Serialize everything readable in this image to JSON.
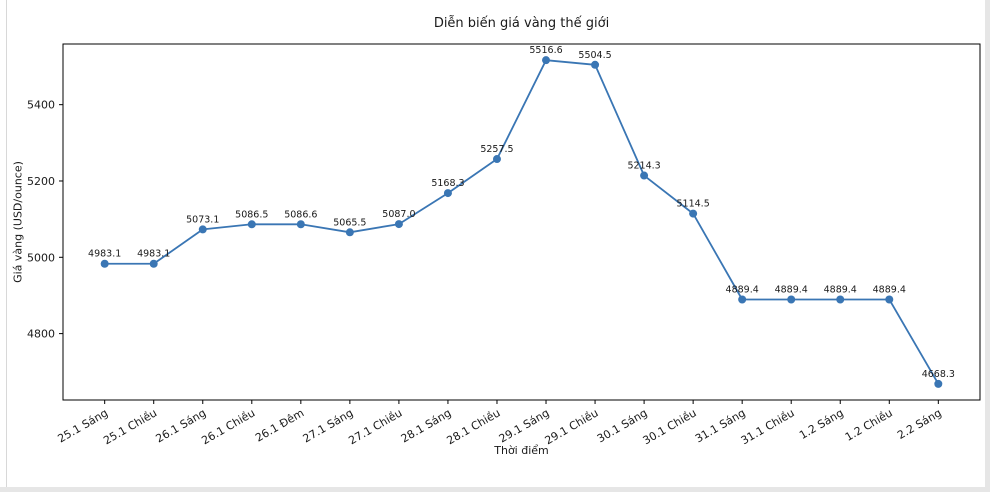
{
  "page": {
    "background": "#ffffff",
    "edge_strip_color": "#e6e6e6"
  },
  "chart_data": {
    "type": "line",
    "title": "Diễn biến giá vàng thế giới",
    "xlabel": "Thời điểm",
    "ylabel": "Giá vàng (USD/ounce)",
    "categories": [
      "25.1 Sáng",
      "25.1 Chiều",
      "26.1 Sáng",
      "26.1 Chiều",
      "26.1 Đêm",
      "27.1 Sáng",
      "27.1 Chiều",
      "28.1 Sáng",
      "28.1 Chiều",
      "29.1 Sáng",
      "29.1 Chiều",
      "30.1 Sáng",
      "30.1 Chiều",
      "31.1 Sáng",
      "31.1 Chiều",
      "1.2 Sáng",
      "1.2 Chiều",
      "2.2 Sáng"
    ],
    "values": [
      4983.1,
      4983.1,
      5073.1,
      5086.5,
      5086.6,
      5065.5,
      5087.0,
      5168.3,
      5257.5,
      5516.6,
      5504.5,
      5214.3,
      5114.5,
      4889.4,
      4889.4,
      4889.4,
      4889.4,
      4668.3
    ],
    "point_labels": [
      "4983.1",
      "4983.1",
      "5073.1",
      "5086.5",
      "5086.6",
      "5065.5",
      "5087.0",
      "5168.3",
      "5257.5",
      "5516.6",
      "5504.5",
      "5214.3",
      "5114.5",
      "4889.4",
      "4889.4",
      "4889.4",
      "4889.4",
      "4668.3"
    ],
    "yticks": [
      4800,
      5000,
      5200,
      5400
    ],
    "ylim": [
      4626,
      5559
    ],
    "xtick_rotation_deg": 30,
    "grid": false,
    "legend": null,
    "line_color": "#3a76b4",
    "marker": "circle",
    "axis_color": "#000000",
    "text_color": "#1a1a1a"
  }
}
